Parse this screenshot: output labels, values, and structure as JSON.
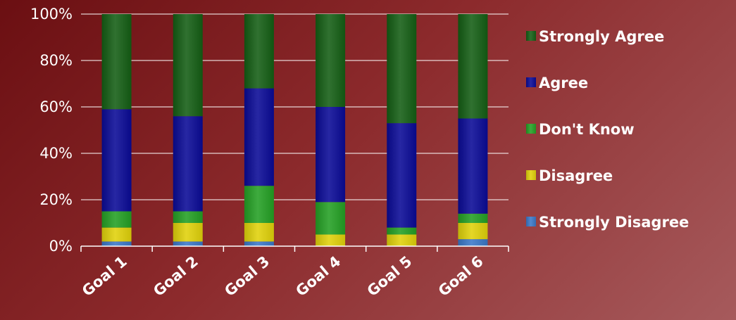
{
  "chart_data": {
    "type": "bar",
    "stacked": true,
    "percent": true,
    "categories": [
      "Goal 1",
      "Goal 2",
      "Goal 3",
      "Goal 4",
      "Goal 5",
      "Goal 6"
    ],
    "series": [
      {
        "name": "Strongly Disagree",
        "color": "#3a78c8",
        "values": [
          2,
          2,
          2,
          0,
          0,
          3
        ]
      },
      {
        "name": "Disagree",
        "color": "#e0d20a",
        "values": [
          6,
          8,
          8,
          5,
          5,
          7
        ]
      },
      {
        "name": "Don't Know",
        "color": "#24a024",
        "values": [
          7,
          5,
          16,
          14,
          3,
          4
        ]
      },
      {
        "name": "Agree",
        "color": "#0a0a96",
        "values": [
          44,
          41,
          42,
          41,
          45,
          41
        ]
      },
      {
        "name": "Strongly Agree",
        "color": "#145e14",
        "values": [
          41,
          44,
          32,
          40,
          47,
          45
        ]
      }
    ],
    "yticks": [
      "0%",
      "20%",
      "40%",
      "60%",
      "80%",
      "100%"
    ],
    "ylim": [
      0,
      100
    ],
    "grid": true,
    "legend_position": "right",
    "title": "",
    "xlabel": "",
    "ylabel": ""
  }
}
